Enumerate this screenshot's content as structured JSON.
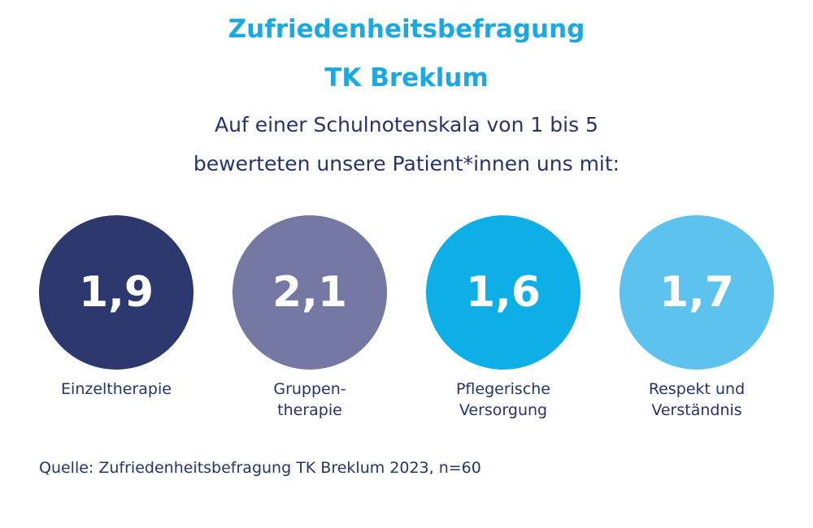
{
  "header": {
    "title": "Zufriedenheitsbefragung",
    "subtitle": "TK Breklum",
    "intro_line1": "Auf einer Schulnotenskala von 1 bis 5",
    "intro_line2": "bewerteten unsere Patient*innen uns mit:"
  },
  "ratings": [
    {
      "value": "1,9",
      "label_line1": "Einzeltherapie",
      "label_line2": "",
      "color": "#2c386e"
    },
    {
      "value": "2,1",
      "label_line1": "Gruppen-",
      "label_line2": "therapie",
      "color": "#7578a3"
    },
    {
      "value": "1,6",
      "label_line1": "Pflegerische",
      "label_line2": "Versorgung",
      "color": "#0eafe6"
    },
    {
      "value": "1,7",
      "label_line1": "Respekt und",
      "label_line2": "Verständnis",
      "color": "#5dc3ee"
    }
  ],
  "source": "Quelle: Zufriedenheitsbefragung TK Breklum 2023, n=60"
}
